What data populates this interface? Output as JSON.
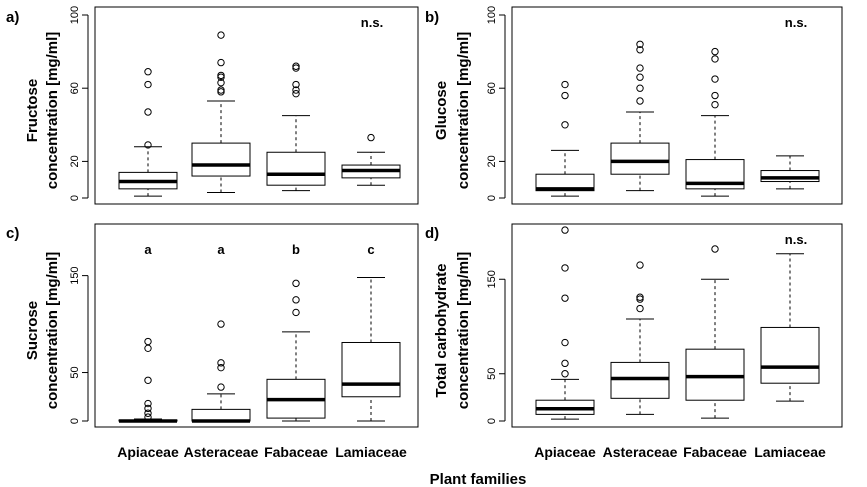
{
  "figure": {
    "xlabel_shared": "Plant families"
  },
  "chart_data": [
    {
      "panel": "a)",
      "type": "boxplot",
      "ylabel_lines": [
        "Fructose",
        "concentration [mg/ml]"
      ],
      "yticks": [
        0,
        20,
        60,
        100
      ],
      "ylim": [
        0,
        100
      ],
      "categories": [
        "Apiaceae",
        "Asteraceae",
        "Fabaceae",
        "Lamiaceae"
      ],
      "show_category_labels": false,
      "boxes": [
        {
          "min": 1,
          "q1": 5,
          "median": 9,
          "q3": 14,
          "max": 28,
          "outliers": [
            29,
            47,
            62,
            69
          ]
        },
        {
          "min": 3,
          "q1": 12,
          "median": 18,
          "q3": 30,
          "max": 53,
          "outliers": [
            58,
            59,
            63,
            66,
            67,
            74,
            89
          ]
        },
        {
          "min": 4,
          "q1": 7,
          "median": 13,
          "q3": 25,
          "max": 45,
          "outliers": [
            57,
            59,
            62,
            71,
            72
          ]
        },
        {
          "min": 7,
          "q1": 11,
          "median": 15,
          "q3": 18,
          "max": 25,
          "outliers": [
            33
          ]
        }
      ],
      "annotations": [
        {
          "text": "n.s.",
          "position": "top-right"
        }
      ]
    },
    {
      "panel": "b)",
      "type": "boxplot",
      "ylabel_lines": [
        "Glucose",
        "concentration [mg/ml]"
      ],
      "yticks": [
        0,
        20,
        60,
        100
      ],
      "ylim": [
        0,
        100
      ],
      "categories": [
        "Apiaceae",
        "Asteraceae",
        "Fabaceae",
        "Lamiaceae"
      ],
      "show_category_labels": false,
      "boxes": [
        {
          "min": 1,
          "q1": 4,
          "median": 5,
          "q3": 13,
          "max": 26,
          "outliers": [
            40,
            56,
            62
          ]
        },
        {
          "min": 4,
          "q1": 13,
          "median": 20,
          "q3": 30,
          "max": 47,
          "outliers": [
            53,
            60,
            66,
            71,
            81,
            84
          ]
        },
        {
          "min": 1,
          "q1": 5,
          "median": 8,
          "q3": 21,
          "max": 45,
          "outliers": [
            51,
            56,
            65,
            76,
            80
          ]
        },
        {
          "min": 5,
          "q1": 9,
          "median": 11,
          "q3": 15,
          "max": 23,
          "outliers": []
        }
      ],
      "annotations": [
        {
          "text": "n.s.",
          "position": "top-right"
        }
      ]
    },
    {
      "panel": "c)",
      "type": "boxplot",
      "ylabel_lines": [
        "Sucrose",
        "concentration [mg/ml]"
      ],
      "yticks": [
        0,
        50,
        150
      ],
      "ylim": [
        0,
        195
      ],
      "categories": [
        "Apiaceae",
        "Asteraceae",
        "Fabaceae",
        "Lamiaceae"
      ],
      "show_category_labels": true,
      "boxes": [
        {
          "min": 0,
          "q1": 0,
          "median": 0,
          "q3": 1,
          "max": 2,
          "outliers": [
            4,
            8,
            13,
            18,
            42,
            75,
            82
          ]
        },
        {
          "min": 0,
          "q1": 0,
          "median": 0,
          "q3": 12,
          "max": 28,
          "outliers": [
            35,
            55,
            60,
            100
          ]
        },
        {
          "min": 0,
          "q1": 3,
          "median": 22,
          "q3": 43,
          "max": 92,
          "outliers": [
            112,
            125,
            142
          ]
        },
        {
          "min": 0,
          "q1": 25,
          "median": 38,
          "q3": 81,
          "max": 148,
          "outliers": []
        }
      ],
      "annotations": [
        {
          "text": "a",
          "category": "Apiaceae"
        },
        {
          "text": "a",
          "category": "Asteraceae"
        },
        {
          "text": "b",
          "category": "Fabaceae"
        },
        {
          "text": "c",
          "category": "Lamiaceae"
        }
      ]
    },
    {
      "panel": "d)",
      "type": "boxplot",
      "ylabel_lines": [
        "Total carbohydrate",
        "concentration [mg/ml]"
      ],
      "yticks": [
        0,
        50,
        150
      ],
      "ylim": [
        0,
        200
      ],
      "categories": [
        "Apiaceae",
        "Asteraceae",
        "Fabaceae",
        "Lamiaceae"
      ],
      "show_category_labels": true,
      "boxes": [
        {
          "min": 2,
          "q1": 7,
          "median": 13,
          "q3": 22,
          "max": 44,
          "outliers": [
            50,
            61,
            83,
            130,
            162,
            202
          ]
        },
        {
          "min": 7,
          "q1": 24,
          "median": 45,
          "q3": 62,
          "max": 108,
          "outliers": [
            119,
            129,
            131,
            165
          ]
        },
        {
          "min": 3,
          "q1": 22,
          "median": 47,
          "q3": 76,
          "max": 150,
          "outliers": [
            182
          ]
        },
        {
          "min": 21,
          "q1": 40,
          "median": 57,
          "q3": 99,
          "max": 177,
          "outliers": []
        }
      ],
      "annotations": [
        {
          "text": "n.s.",
          "position": "top-right"
        }
      ]
    }
  ]
}
